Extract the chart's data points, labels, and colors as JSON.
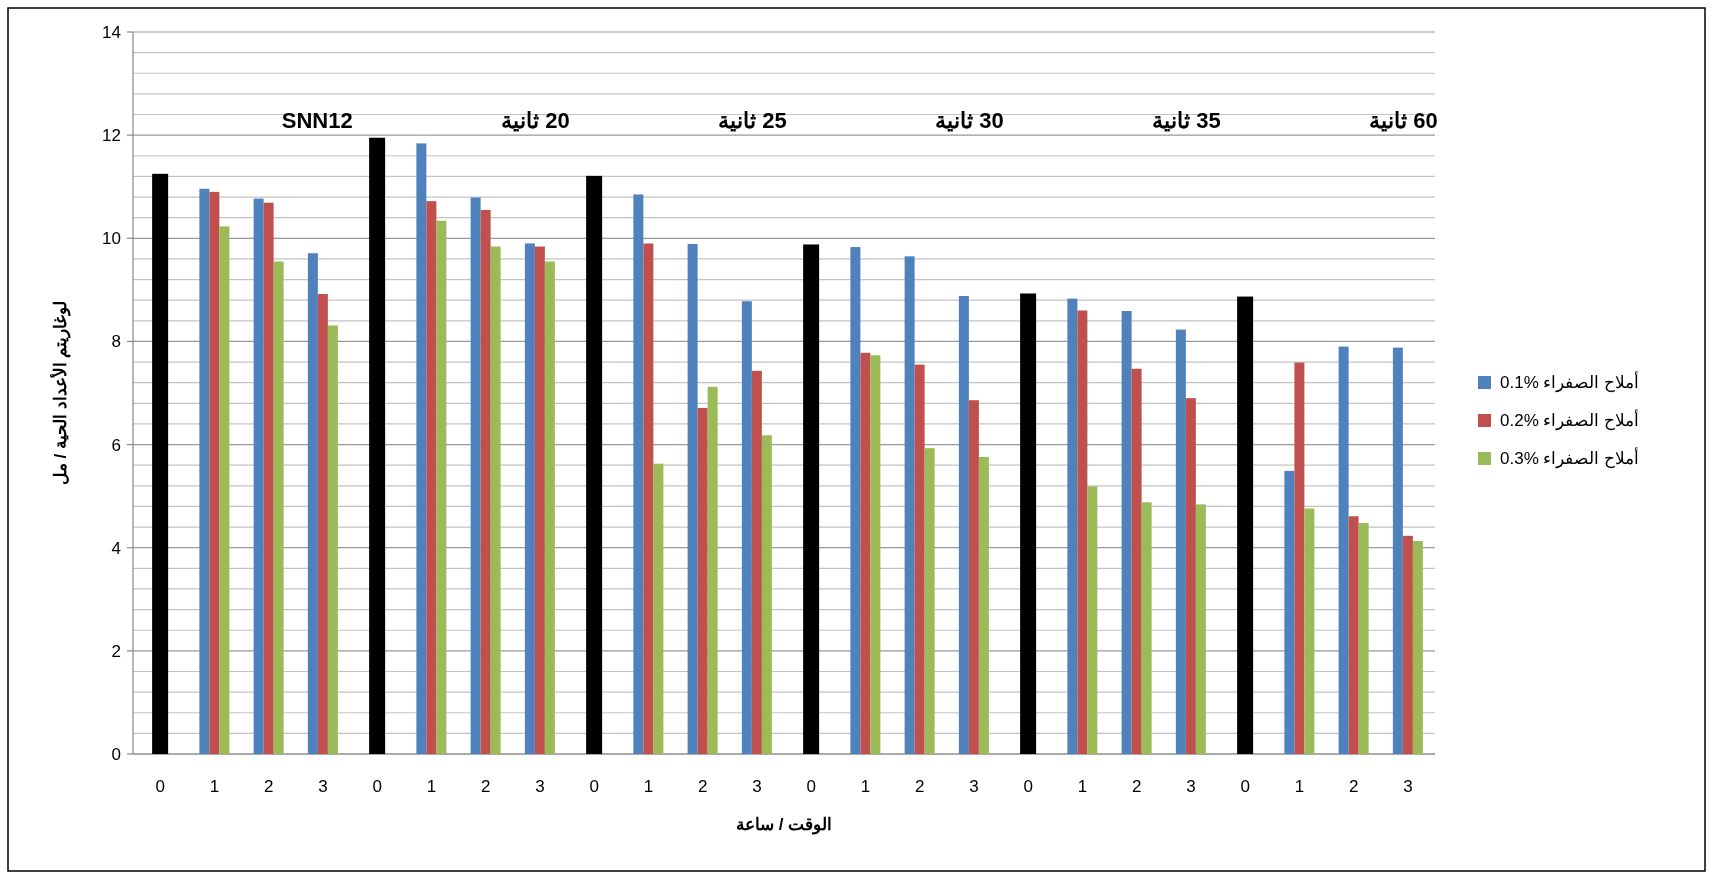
{
  "chart_data": {
    "type": "bar",
    "xlabel": "الوقت / ساعة",
    "ylabel": "لوغاريتم الأعداد الحية / مل",
    "categories": [
      "0",
      "1",
      "2",
      "3",
      "0",
      "1",
      "2",
      "3",
      "0",
      "1",
      "2",
      "3",
      "0",
      "1",
      "2",
      "3",
      "0",
      "1",
      "2",
      "3",
      "0",
      "1",
      "2",
      "3"
    ],
    "series": [
      {
        "color": "#000000",
        "values": [
          11.25,
          null,
          null,
          null,
          11.95,
          null,
          null,
          null,
          11.21,
          null,
          null,
          null,
          9.88,
          null,
          null,
          null,
          8.93,
          null,
          null,
          null,
          8.87,
          null,
          null,
          null
        ]
      },
      {
        "name": "أملاح الصفراء %0.1",
        "color": "#4f81bd",
        "values": [
          null,
          10.96,
          10.77,
          9.71,
          null,
          11.84,
          10.79,
          9.9,
          null,
          10.85,
          9.89,
          8.78,
          null,
          9.83,
          9.65,
          8.88,
          null,
          8.83,
          8.59,
          8.23,
          null,
          5.49,
          7.9,
          7.88
        ]
      },
      {
        "name": "أملاح الصفراء %0.2",
        "color": "#c0504d",
        "values": [
          null,
          10.9,
          10.69,
          8.92,
          null,
          10.72,
          10.55,
          9.84,
          null,
          9.9,
          6.71,
          7.43,
          null,
          7.78,
          7.55,
          6.86,
          null,
          8.6,
          7.47,
          6.9,
          null,
          7.59,
          4.61,
          4.23
        ]
      },
      {
        "name": "أملاح الصفراء %0.3",
        "color": "#9bbb59",
        "values": [
          null,
          10.23,
          9.55,
          8.31,
          null,
          10.34,
          9.84,
          9.55,
          null,
          5.63,
          7.12,
          6.18,
          null,
          7.73,
          5.93,
          5.76,
          null,
          5.19,
          4.88,
          4.84,
          null,
          4.76,
          4.48,
          4.13
        ]
      }
    ],
    "annotations": [
      "SNN12",
      "20 ثانية",
      "25 ثانية",
      "30 ثانية",
      "35 ثانية",
      "60 ثانية"
    ],
    "ylim": [
      0,
      14
    ],
    "yticks": [
      0,
      2,
      4,
      6,
      8,
      10,
      12,
      14
    ],
    "grid": "y",
    "legend": "right"
  }
}
